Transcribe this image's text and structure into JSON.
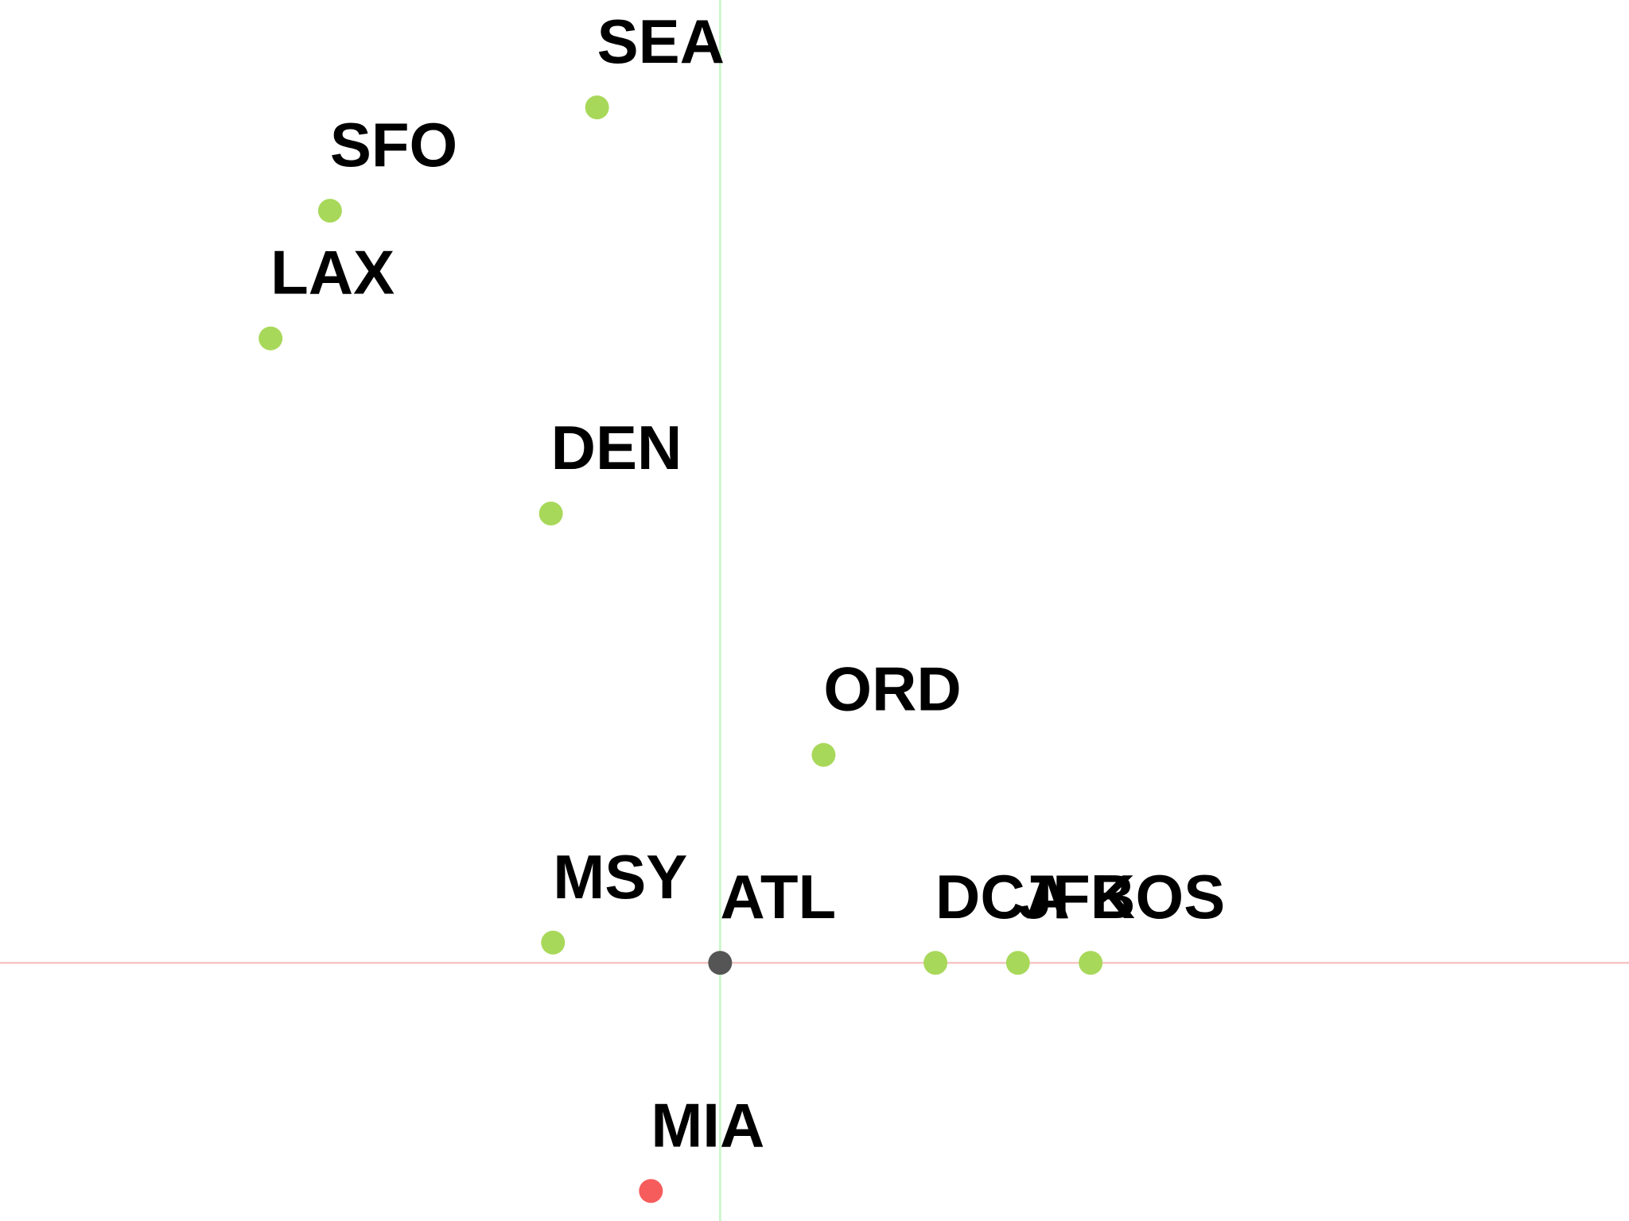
{
  "chart_data": {
    "type": "scatter",
    "title": "",
    "xlabel": "",
    "ylabel": "",
    "grid": false,
    "origin": {
      "x": 0,
      "y": 0
    },
    "xlim": [
      -1030,
      1300
    ],
    "ylim": [
      -370,
      1380
    ],
    "colors": {
      "origin_point": "#555555",
      "positive_point": "#a8d85a",
      "negative_point": "#f65c5c",
      "horizontal_axis": "#f6c6c6",
      "vertical_axis": "#c6f6c6",
      "label": "#000000"
    },
    "points": [
      {
        "label": "SEA",
        "x": -176,
        "y": 1226,
        "category": "positive"
      },
      {
        "label": "SFO",
        "x": -558,
        "y": 1078,
        "category": "positive"
      },
      {
        "label": "LAX",
        "x": -643,
        "y": 895,
        "category": "positive"
      },
      {
        "label": "DEN",
        "x": -242,
        "y": 644,
        "category": "positive"
      },
      {
        "label": "ORD",
        "x": 148,
        "y": 298,
        "category": "positive"
      },
      {
        "label": "MSY",
        "x": -239,
        "y": 29,
        "category": "positive"
      },
      {
        "label": "ATL",
        "x": 0,
        "y": 0,
        "category": "origin"
      },
      {
        "label": "DCA",
        "x": 308,
        "y": 0,
        "category": "positive"
      },
      {
        "label": "JFK",
        "x": 426,
        "y": 0,
        "category": "positive"
      },
      {
        "label": "BOS",
        "x": 530,
        "y": 0,
        "category": "positive"
      },
      {
        "label": "MIA",
        "x": -99,
        "y": -327,
        "category": "negative"
      }
    ]
  }
}
